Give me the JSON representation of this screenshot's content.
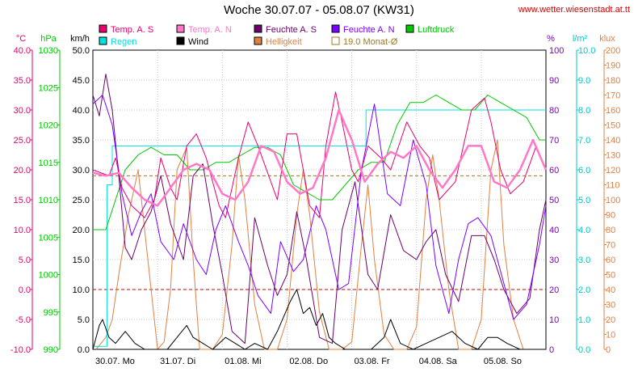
{
  "page": {
    "title": "Woche 30.07.07 - 05.08.07 (KW31)",
    "source": "www.wetter.wiesenstadt.at.tt"
  },
  "chart_data": {
    "type": "line",
    "title": "Woche 30.07.07 - 05.08.07 (KW31)",
    "x_tick_labels": [
      "30.07.  Mo",
      "31.07.  Di",
      "01.08.  Mi",
      "02.08.  Do",
      "03.08.  Fr",
      "04.08.  Sa",
      "05.08.  So"
    ],
    "x_days": 7,
    "grid": true,
    "axes": {
      "temp": {
        "unit": "°C",
        "min": -10,
        "max": 40,
        "step": 5,
        "color": "#e8006e",
        "decimals": 1
      },
      "pressure": {
        "unit": "hPa",
        "min": 990,
        "max": 1030,
        "step": 5,
        "color": "#00c800",
        "decimals": 0
      },
      "wind": {
        "unit": "km/h",
        "min": 0,
        "max": 50,
        "step": 5,
        "color": "#000000",
        "decimals": 1
      },
      "humidity": {
        "unit": "%",
        "min": 0,
        "max": 100,
        "step": 10,
        "color": "#7a00b8",
        "decimals": 0
      },
      "rain": {
        "unit": "l/m²",
        "min": 0,
        "max": 10,
        "step": 1,
        "color": "#00c8c8",
        "decimals": 1
      },
      "lux": {
        "unit": "klux",
        "min": 0,
        "max": 200,
        "step": 10,
        "color": "#e08040",
        "decimals": 0
      }
    },
    "reference_lines": [
      {
        "axis": "temp",
        "value": 0,
        "color": "#c80000"
      },
      {
        "axis": "temp",
        "value": 19,
        "color": "#a07820"
      }
    ],
    "legend": [
      {
        "label": "Temp. A. S",
        "color": "#e8006e",
        "style": "filled"
      },
      {
        "label": "Temp. A. N",
        "color": "#ff78c8",
        "style": "filled"
      },
      {
        "label": "Feuchte A. S",
        "color": "#6a006a",
        "style": "filled"
      },
      {
        "label": "Feuchte A. N",
        "color": "#7a00ff",
        "style": "filled"
      },
      {
        "label": "Luftdruck",
        "color": "#00c800",
        "style": "filled"
      },
      {
        "label": "Regen",
        "color": "#00e0e0",
        "style": "filled"
      },
      {
        "label": "Wind",
        "color": "#000000",
        "style": "filled"
      },
      {
        "label": "Helligkeit",
        "color": "#e08040",
        "style": "filled"
      },
      {
        "label": "19.0 Monat-Ø",
        "color": "#a07820",
        "style": "outline"
      }
    ],
    "series": [
      {
        "name": "Temp. A. N",
        "axis": "temp",
        "color": "#ff78c8",
        "width": 2.5,
        "x": [
          0,
          0.2,
          0.4,
          0.6,
          0.8,
          1,
          1.2,
          1.4,
          1.6,
          1.8,
          2,
          2.2,
          2.4,
          2.6,
          2.8,
          3,
          3.2,
          3.4,
          3.6,
          3.8,
          4,
          4.2,
          4.4,
          4.6,
          4.8,
          5,
          5.2,
          5.4,
          5.6,
          5.8,
          6,
          6.2,
          6.4,
          6.6,
          6.8,
          7
        ],
        "y": [
          19.5,
          19,
          19.5,
          17,
          15,
          14,
          17,
          20,
          21,
          20,
          16,
          15,
          18,
          24,
          23,
          18,
          16,
          17,
          22,
          30,
          25,
          18,
          21,
          23,
          22,
          24,
          20,
          17,
          20,
          24,
          24,
          18,
          17,
          20,
          25,
          20
        ]
      },
      {
        "name": "Temp. A. S",
        "axis": "temp",
        "color": "#e8006e",
        "width": 1,
        "x": [
          0,
          0.25,
          0.35,
          0.45,
          0.6,
          0.8,
          0.95,
          1.05,
          1.2,
          1.3,
          1.45,
          1.6,
          1.75,
          1.95,
          2.05,
          2.25,
          2.4,
          2.55,
          2.75,
          2.85,
          3,
          3.15,
          3.35,
          3.5,
          3.6,
          3.75,
          3.85,
          4,
          4.1,
          4.25,
          4.45,
          4.6,
          4.85,
          5.05,
          5.2,
          5.35,
          5.6,
          5.85,
          6.05,
          6.15,
          6.3,
          6.45,
          6.65,
          6.85,
          7
        ],
        "y": [
          20,
          19,
          22,
          17,
          14,
          12,
          15,
          22,
          17,
          15,
          24,
          26,
          22,
          14,
          12,
          22,
          28,
          24,
          18,
          15,
          26,
          26,
          14,
          12,
          24,
          33,
          28,
          20,
          18,
          24,
          22,
          20,
          28,
          24,
          22,
          15,
          18,
          30,
          32,
          28,
          20,
          16,
          18,
          24,
          20
        ]
      },
      {
        "name": "Feuchte A. S",
        "axis": "humidity",
        "color": "#6a006a",
        "width": 1,
        "x": [
          0,
          0.1,
          0.2,
          0.3,
          0.4,
          0.5,
          0.6,
          0.75,
          0.9,
          1.05,
          1.2,
          1.4,
          1.55,
          1.7,
          1.85,
          2,
          2.15,
          2.35,
          2.5,
          2.7,
          2.85,
          3,
          3.15,
          3.3,
          3.5,
          3.7,
          3.85,
          4.05,
          4.25,
          4.4,
          4.6,
          4.8,
          5,
          5.15,
          5.3,
          5.45,
          5.65,
          5.85,
          6.05,
          6.2,
          6.35,
          6.55,
          6.75,
          6.9,
          7
        ],
        "y": [
          85,
          78,
          92,
          80,
          58,
          34,
          30,
          40,
          46,
          58,
          42,
          30,
          58,
          62,
          42,
          25,
          6,
          2,
          44,
          28,
          18,
          25,
          46,
          30,
          4,
          2,
          40,
          56,
          25,
          20,
          45,
          33,
          30,
          36,
          40,
          25,
          16,
          38,
          38,
          30,
          20,
          12,
          17,
          40,
          50
        ]
      },
      {
        "name": "Feuchte A. N",
        "axis": "humidity",
        "color": "#7a00ff",
        "width": 1,
        "x": [
          0,
          0.15,
          0.3,
          0.45,
          0.6,
          0.75,
          0.9,
          1.05,
          1.25,
          1.4,
          1.6,
          1.75,
          1.9,
          2.05,
          2.25,
          2.4,
          2.55,
          2.75,
          2.9,
          3.1,
          3.25,
          3.45,
          3.6,
          3.8,
          3.95,
          4.15,
          4.35,
          4.55,
          4.75,
          4.95,
          5.15,
          5.3,
          5.5,
          5.65,
          5.8,
          5.95,
          6.15,
          6.3,
          6.5,
          6.7,
          6.9,
          7
        ],
        "y": [
          82,
          85,
          75,
          52,
          38,
          46,
          52,
          36,
          30,
          42,
          30,
          25,
          40,
          48,
          36,
          28,
          18,
          12,
          36,
          26,
          30,
          48,
          40,
          20,
          22,
          60,
          82,
          52,
          48,
          70,
          55,
          28,
          12,
          30,
          42,
          44,
          38,
          26,
          10,
          15,
          35,
          48
        ]
      },
      {
        "name": "Luftdruck",
        "axis": "pressure",
        "color": "#00c800",
        "width": 1,
        "x": [
          0,
          0.2,
          0.35,
          0.5,
          0.7,
          0.9,
          1.1,
          1.3,
          1.5,
          1.7,
          1.9,
          2.1,
          2.3,
          2.5,
          2.7,
          2.9,
          3.1,
          3.3,
          3.5,
          3.7,
          3.9,
          4.1,
          4.3,
          4.5,
          4.7,
          4.9,
          5.1,
          5.3,
          5.5,
          5.7,
          5.9,
          6.1,
          6.3,
          6.5,
          6.7,
          6.9,
          7
        ],
        "y": [
          1006,
          1006,
          1010,
          1014,
          1016,
          1017,
          1016,
          1016,
          1014,
          1014,
          1015,
          1015,
          1016,
          1017,
          1017,
          1016,
          1012,
          1011,
          1010,
          1010,
          1012,
          1014,
          1015,
          1015,
          1020,
          1023,
          1023,
          1024,
          1023,
          1022,
          1022,
          1024,
          1023,
          1022,
          1021,
          1018,
          1018
        ]
      },
      {
        "name": "Regen",
        "axis": "rain",
        "color": "#00e0e0",
        "width": 1,
        "x": [
          0,
          0.22,
          0.22,
          0.3,
          0.3,
          0.4,
          0.4,
          4.22,
          4.22,
          7
        ],
        "y": [
          0.1,
          0.1,
          5.5,
          5.5,
          6.8,
          6.8,
          6.8,
          6.8,
          8.0,
          8.0
        ]
      },
      {
        "name": "Wind",
        "axis": "wind",
        "color": "#000000",
        "width": 1,
        "x": [
          0,
          0.1,
          0.15,
          0.25,
          0.35,
          0.5,
          0.65,
          0.8,
          1.0,
          1.15,
          1.3,
          1.45,
          1.55,
          1.7,
          1.85,
          2.05,
          2.2,
          2.35,
          2.5,
          2.7,
          2.85,
          3.05,
          3.15,
          3.25,
          3.35,
          3.45,
          3.55,
          3.65,
          3.75,
          3.9,
          4.1,
          4.3,
          4.5,
          4.6,
          4.75,
          4.95,
          5.15,
          5.35,
          5.55,
          5.75,
          5.95,
          6.1,
          6.25,
          6.4,
          6.6,
          6.8,
          7
        ],
        "y": [
          0,
          4,
          5,
          2,
          1,
          3,
          1,
          0,
          0,
          0,
          2,
          4,
          2,
          1,
          0,
          2,
          1,
          0,
          1,
          0,
          3,
          8,
          10,
          6,
          7,
          4,
          6,
          2,
          1,
          0,
          0,
          0,
          2,
          5,
          1,
          0,
          1,
          2,
          3,
          1,
          0,
          2,
          2,
          1,
          0,
          0,
          0
        ]
      },
      {
        "name": "Helligkeit",
        "axis": "lux",
        "color": "#e08040",
        "width": 1,
        "x": [
          0.05,
          0.2,
          0.3,
          0.4,
          0.55,
          0.7,
          0.85,
          1.0,
          1.1,
          1.2,
          1.3,
          1.45,
          1.55,
          1.65,
          1.85,
          2.0,
          2.15,
          2.25,
          2.35,
          2.5,
          2.65,
          2.85,
          3.0,
          3.15,
          3.25,
          3.35,
          3.5,
          3.65,
          3.85,
          4.0,
          4.15,
          4.25,
          4.35,
          4.5,
          4.65,
          4.85,
          5.0,
          5.15,
          5.25,
          5.35,
          5.5,
          5.65,
          5.85,
          6.0,
          6.15,
          6.25,
          6.35,
          6.5,
          6.65,
          6.9,
          7
        ],
        "y": [
          0,
          8,
          20,
          50,
          90,
          120,
          60,
          0,
          5,
          40,
          120,
          135,
          60,
          0,
          0,
          10,
          70,
          130,
          100,
          30,
          0,
          0,
          20,
          90,
          120,
          90,
          25,
          0,
          0,
          5,
          70,
          110,
          60,
          10,
          0,
          0,
          15,
          100,
          130,
          100,
          40,
          0,
          0,
          20,
          120,
          140,
          70,
          20,
          0,
          0,
          0
        ]
      }
    ]
  }
}
